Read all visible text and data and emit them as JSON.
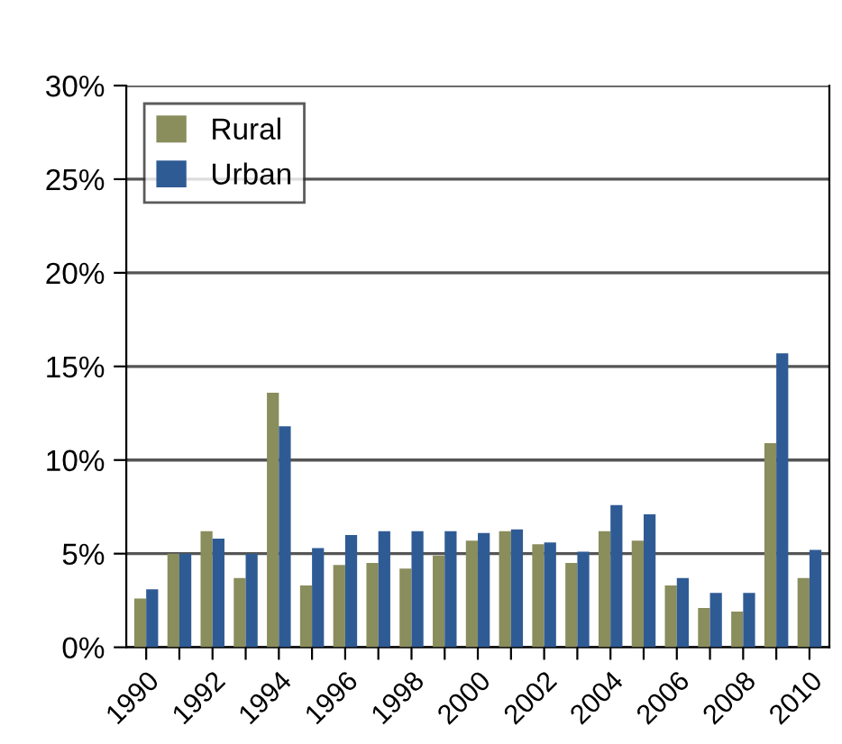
{
  "chart_data": {
    "type": "bar",
    "categories": [
      "1990",
      null,
      "1992",
      null,
      "1994",
      null,
      "1996",
      null,
      "1998",
      null,
      "2000",
      null,
      "2002",
      null,
      "2004",
      null,
      "2006",
      null,
      "2008",
      null,
      "2010"
    ],
    "series": [
      {
        "name": "Rural",
        "color": "#8a8d5c",
        "values": [
          2.6,
          5.0,
          6.2,
          3.7,
          13.6,
          3.3,
          4.4,
          4.5,
          4.2,
          4.9,
          5.7,
          6.2,
          5.5,
          4.5,
          6.2,
          5.7,
          3.3,
          2.1,
          1.9,
          10.9,
          3.7
        ]
      },
      {
        "name": "Urban",
        "color": "#2f5b95",
        "values": [
          3.1,
          5.0,
          5.8,
          5.0,
          11.8,
          5.3,
          6.0,
          6.2,
          6.2,
          6.2,
          6.1,
          6.3,
          5.6,
          5.1,
          7.6,
          7.1,
          3.7,
          2.9,
          2.9,
          15.7,
          5.2
        ]
      }
    ],
    "ylim": [
      0,
      30
    ],
    "yticks": [
      {
        "value": 0,
        "label": "0%"
      },
      {
        "value": 5,
        "label": "5%"
      },
      {
        "value": 10,
        "label": "10%"
      },
      {
        "value": 15,
        "label": "15%"
      },
      {
        "value": 20,
        "label": "20%"
      },
      {
        "value": 25,
        "label": "25%"
      },
      {
        "value": 30,
        "label": "30%"
      }
    ],
    "grid": "y",
    "legend": "top left"
  }
}
